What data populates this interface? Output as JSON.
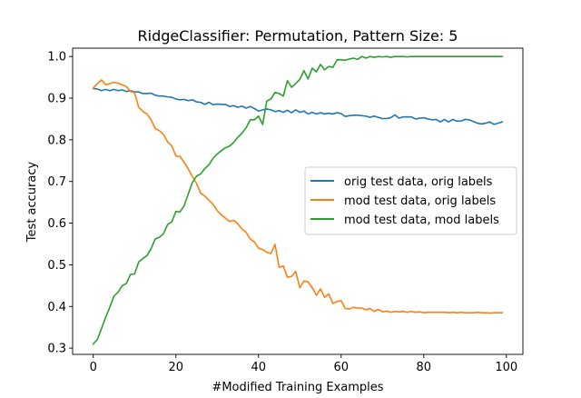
{
  "chart_data": {
    "type": "line",
    "title": "RidgeClassifier: Permutation, Pattern Size: 5",
    "xlabel": "#Modified Training Examples",
    "ylabel": "Test accuracy",
    "xlim": [
      -5,
      104
    ],
    "ylim": [
      0.285,
      1.02
    ],
    "xticks": [
      0,
      20,
      40,
      60,
      80,
      100
    ],
    "xtick_labels": [
      "0",
      "20",
      "40",
      "60",
      "80",
      "100"
    ],
    "yticks": [
      0.3,
      0.4,
      0.5,
      0.6,
      0.7,
      0.8,
      0.9,
      1.0
    ],
    "ytick_labels": [
      "0.3",
      "0.4",
      "0.5",
      "0.6",
      "0.7",
      "0.8",
      "0.9",
      "1.0"
    ],
    "grid": false,
    "legend_position": "center-right",
    "series": [
      {
        "name": "orig test data, orig labels",
        "color": "#1f77b4",
        "x": [
          0,
          1,
          2,
          3,
          4,
          5,
          6,
          7,
          8,
          9,
          10,
          11,
          12,
          13,
          14,
          15,
          16,
          17,
          18,
          19,
          20,
          21,
          22,
          23,
          24,
          25,
          26,
          27,
          28,
          29,
          30,
          31,
          32,
          33,
          34,
          35,
          36,
          37,
          38,
          39,
          40,
          41,
          42,
          43,
          44,
          45,
          46,
          47,
          48,
          49,
          50,
          51,
          52,
          53,
          54,
          55,
          56,
          57,
          58,
          59,
          60,
          61,
          62,
          63,
          64,
          65,
          66,
          67,
          68,
          69,
          70,
          71,
          72,
          73,
          74,
          75,
          76,
          77,
          78,
          79,
          80,
          81,
          82,
          83,
          84,
          85,
          86,
          87,
          88,
          89,
          90,
          91,
          92,
          93,
          94,
          95,
          96,
          97,
          98,
          99
        ],
        "y": [
          0.923,
          0.922,
          0.918,
          0.921,
          0.918,
          0.921,
          0.918,
          0.92,
          0.916,
          0.918,
          0.915,
          0.915,
          0.911,
          0.911,
          0.912,
          0.907,
          0.905,
          0.905,
          0.903,
          0.902,
          0.898,
          0.896,
          0.897,
          0.894,
          0.896,
          0.891,
          0.89,
          0.885,
          0.89,
          0.884,
          0.886,
          0.885,
          0.885,
          0.88,
          0.882,
          0.878,
          0.881,
          0.876,
          0.88,
          0.875,
          0.869,
          0.872,
          0.874,
          0.872,
          0.868,
          0.87,
          0.866,
          0.871,
          0.865,
          0.872,
          0.866,
          0.869,
          0.862,
          0.866,
          0.862,
          0.865,
          0.862,
          0.864,
          0.862,
          0.865,
          0.863,
          0.856,
          0.858,
          0.859,
          0.859,
          0.858,
          0.857,
          0.854,
          0.857,
          0.854,
          0.851,
          0.851,
          0.853,
          0.86,
          0.852,
          0.855,
          0.855,
          0.855,
          0.85,
          0.852,
          0.853,
          0.85,
          0.848,
          0.849,
          0.843,
          0.849,
          0.843,
          0.849,
          0.845,
          0.845,
          0.849,
          0.848,
          0.844,
          0.84,
          0.838,
          0.84,
          0.843,
          0.837,
          0.84,
          0.843
        ]
      },
      {
        "name": "mod test data, orig labels",
        "color": "#ff7f0e",
        "x": [
          0,
          1,
          2,
          3,
          4,
          5,
          6,
          7,
          8,
          9,
          10,
          11,
          12,
          13,
          14,
          15,
          16,
          17,
          18,
          19,
          20,
          21,
          22,
          23,
          24,
          25,
          26,
          27,
          28,
          29,
          30,
          31,
          32,
          33,
          34,
          35,
          36,
          37,
          38,
          39,
          40,
          41,
          42,
          43,
          44,
          45,
          46,
          47,
          48,
          49,
          50,
          51,
          52,
          53,
          54,
          55,
          56,
          57,
          58,
          59,
          60,
          61,
          62,
          63,
          64,
          65,
          66,
          67,
          68,
          69,
          70,
          71,
          72,
          73,
          74,
          75,
          76,
          77,
          78,
          79,
          80,
          81,
          82,
          83,
          84,
          85,
          86,
          87,
          88,
          89,
          90,
          91,
          92,
          93,
          94,
          95,
          96,
          97,
          98,
          99
        ],
        "y": [
          0.924,
          0.935,
          0.944,
          0.932,
          0.935,
          0.938,
          0.936,
          0.932,
          0.928,
          0.916,
          0.913,
          0.878,
          0.868,
          0.862,
          0.848,
          0.827,
          0.822,
          0.813,
          0.795,
          0.786,
          0.761,
          0.76,
          0.746,
          0.73,
          0.712,
          0.695,
          0.672,
          0.665,
          0.655,
          0.645,
          0.63,
          0.62,
          0.612,
          0.604,
          0.607,
          0.598,
          0.586,
          0.578,
          0.562,
          0.555,
          0.54,
          0.537,
          0.53,
          0.527,
          0.549,
          0.494,
          0.497,
          0.47,
          0.472,
          0.484,
          0.445,
          0.461,
          0.459,
          0.445,
          0.427,
          0.442,
          0.422,
          0.43,
          0.407,
          0.412,
          0.414,
          0.395,
          0.394,
          0.398,
          0.396,
          0.396,
          0.392,
          0.395,
          0.388,
          0.393,
          0.387,
          0.389,
          0.386,
          0.388,
          0.387,
          0.388,
          0.386,
          0.388,
          0.386,
          0.387,
          0.385,
          0.386,
          0.386,
          0.386,
          0.386,
          0.386,
          0.385,
          0.386,
          0.385,
          0.386,
          0.385,
          0.385,
          0.385,
          0.386,
          0.385,
          0.385,
          0.384,
          0.385,
          0.385,
          0.385
        ]
      },
      {
        "name": "mod test data, mod labels",
        "color": "#2ca02c",
        "x": [
          0,
          1,
          2,
          3,
          4,
          5,
          6,
          7,
          8,
          9,
          10,
          11,
          12,
          13,
          14,
          15,
          16,
          17,
          18,
          19,
          20,
          21,
          22,
          23,
          24,
          25,
          26,
          27,
          28,
          29,
          30,
          31,
          32,
          33,
          34,
          35,
          36,
          37,
          38,
          39,
          40,
          41,
          42,
          43,
          44,
          45,
          46,
          47,
          48,
          49,
          50,
          51,
          52,
          53,
          54,
          55,
          56,
          57,
          58,
          59,
          60,
          61,
          62,
          63,
          64,
          65,
          66,
          67,
          68,
          69,
          70,
          71,
          72,
          73,
          74,
          75,
          76,
          77,
          78,
          79,
          80,
          81,
          82,
          83,
          84,
          85,
          86,
          87,
          88,
          89,
          90,
          91,
          92,
          93,
          94,
          95,
          96,
          97,
          98,
          99
        ],
        "y": [
          0.31,
          0.321,
          0.347,
          0.374,
          0.398,
          0.425,
          0.434,
          0.45,
          0.455,
          0.477,
          0.478,
          0.507,
          0.515,
          0.522,
          0.539,
          0.562,
          0.566,
          0.575,
          0.597,
          0.603,
          0.628,
          0.627,
          0.642,
          0.67,
          0.698,
          0.713,
          0.718,
          0.731,
          0.74,
          0.756,
          0.766,
          0.774,
          0.781,
          0.785,
          0.794,
          0.806,
          0.816,
          0.829,
          0.848,
          0.848,
          0.857,
          0.837,
          0.893,
          0.898,
          0.914,
          0.911,
          0.905,
          0.942,
          0.926,
          0.935,
          0.945,
          0.966,
          0.946,
          0.972,
          0.963,
          0.981,
          0.968,
          0.976,
          0.974,
          0.992,
          0.992,
          0.991,
          0.994,
          0.996,
          0.993,
          1.0,
          0.996,
          1.0,
          0.998,
          1.0,
          0.999,
          1.0,
          0.998,
          1.0,
          1.0,
          1.0,
          0.999,
          1.0,
          1.0,
          1.0,
          1.0,
          1.0,
          1.0,
          1.0,
          1.0,
          1.0,
          1.0,
          1.0,
          1.0,
          1.0,
          1.0,
          1.0,
          1.0,
          1.0,
          1.0,
          1.0,
          1.0,
          1.0,
          1.0,
          1.0
        ]
      }
    ]
  }
}
